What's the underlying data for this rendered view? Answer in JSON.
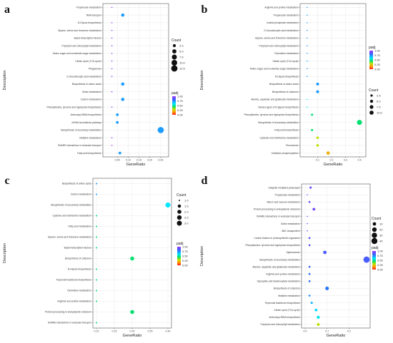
{
  "chart_data": [
    {
      "panel": "a",
      "type": "scatter",
      "xlabel": "GeneRatio",
      "ylabel": "Description",
      "xlim": [
        0.0,
        0.27
      ],
      "xticks": [
        0.05,
        0.1,
        0.15,
        0.2,
        0.25
      ],
      "xtick_labels": [
        "0.05",
        "0.10",
        "0.15",
        "0.20",
        "0.25"
      ],
      "color_scale": "padj",
      "categories": [
        "Propanoate metabolism",
        "RNA transport",
        "N-Glycan biosynthesis",
        "Glycine, serine and threonine metabolism",
        "Basal transcription factors",
        "Porphyrin and chlorophyll metabolism",
        "Amino sugar and nucleotide sugar metabolism",
        "Citrate cycle (TCA cycle)",
        "Phagosome",
        "2-Oxocarboxylic acid metabolism",
        "Biosynthesis of amino acids",
        "Sulfur metabolism",
        "Carbon metabolism",
        "Phenylalanine, tyrosine and tryptophan biosynthesis",
        "Aminoacyl-tRNA biosynthesis",
        "mRNA surveillance pathway",
        "Biosynthesis of secondary metabolites",
        "Histidine metabolism",
        "SNARE interactions in vesicular transport",
        "Fatty acid biosynthesis"
      ],
      "x": [
        0.025,
        0.075,
        0.025,
        0.025,
        0.025,
        0.025,
        0.025,
        0.025,
        0.025,
        0.025,
        0.075,
        0.025,
        0.075,
        0.025,
        0.05,
        0.05,
        0.25,
        0.025,
        0.025,
        0.062
      ],
      "count": [
        1,
        3,
        1,
        1,
        1,
        1,
        1,
        1,
        1,
        1,
        3,
        1,
        3,
        1,
        2,
        2,
        12,
        1,
        1,
        2
      ],
      "padj": [
        1,
        0.72,
        1,
        1,
        1,
        1,
        1,
        1,
        1,
        1,
        0.72,
        1,
        0.72,
        1,
        0.72,
        0.72,
        0.72,
        1,
        1,
        0.72
      ],
      "size_legend": {
        "title": "Count",
        "values": [
          2.5,
          5.0,
          7.5,
          10.0,
          12.5
        ],
        "labels": [
          "2.5",
          "5.0",
          "7.5",
          "10.0",
          "12.5"
        ]
      },
      "color_legend": {
        "title": "padj",
        "ticks": [
          1.0,
          0.75,
          0.5,
          0.25,
          0.0
        ],
        "labels": [
          "1.00",
          "0.75",
          "0.50",
          "0.25",
          "0.00"
        ]
      }
    },
    {
      "panel": "b",
      "type": "scatter",
      "xlabel": "GeneRatio",
      "ylabel": "Description",
      "xlim": [
        0.0,
        0.42
      ],
      "xticks": [
        0.1,
        0.2,
        0.3,
        0.4
      ],
      "xtick_labels": [
        "0.1",
        "0.2",
        "0.3",
        "0.4"
      ],
      "color_scale": "padj",
      "categories": [
        "Arginine and proline metabolism",
        "Propanoate metabolism",
        "Inositol phosphate metabolism",
        "2-Oxocarboxylic acid metabolism",
        "Glycine, serine and threonine metabolism",
        "Porphyrin and chlorophyll metabolism",
        "Pyrimidine metabolism",
        "Citrate cycle (TCA cycle)",
        "Amino sugar and nucleotide sugar metabolism",
        "N-Glycan biosynthesis",
        "Biosynthesis of amino acids",
        "Biosynthesis of cofactors",
        "Alanine, aspartate and glutamate metabolism",
        "Various types of N-glycan biosynthesis",
        "Phenylalanine, tyrosine and tryptophan biosynthesis",
        "Biosynthesis of secondary metabolites",
        "Fatty acid biosynthesis",
        "Cysteine and methionine metabolism",
        "Peroxisome",
        "Oxidative phosphorylation"
      ],
      "x": [
        0.025,
        0.025,
        0.025,
        0.025,
        0.025,
        0.025,
        0.025,
        0.025,
        0.025,
        0.025,
        0.1,
        0.1,
        0.025,
        0.025,
        0.06,
        0.4,
        0.06,
        0.1,
        0.1,
        0.175
      ],
      "count": [
        1,
        1,
        1,
        1,
        1,
        1,
        1,
        1,
        1,
        1,
        4,
        4,
        1,
        1,
        2,
        16,
        2,
        3,
        3,
        6
      ],
      "padj": [
        0.72,
        0.72,
        0.72,
        0.72,
        0.72,
        0.72,
        0.72,
        0.72,
        0.72,
        0.72,
        0.72,
        0.72,
        0.6,
        0.6,
        0.45,
        0.45,
        0.45,
        0.3,
        0.3,
        0.2
      ],
      "size_legend": {
        "title": "Count",
        "values": [
          2.5,
          5.0,
          7.5,
          10.0
        ],
        "labels": [
          "2.5",
          "5.0",
          "7.5",
          "10.0"
        ]
      },
      "color_legend": {
        "title": "padj",
        "ticks": [
          1.0,
          0.75,
          0.5,
          0.25,
          0.0
        ],
        "labels": [
          "1.00",
          "0.75",
          "0.50",
          "0.25",
          "0.00"
        ]
      }
    },
    {
      "panel": "c",
      "type": "scatter",
      "xlabel": "GeneRatio",
      "ylabel": "Description",
      "xlim": [
        0.1,
        0.3
      ],
      "xticks": [
        0.1,
        0.15,
        0.2,
        0.25,
        0.3
      ],
      "xtick_labels": [
        "0.10",
        "0.15",
        "0.20",
        "0.25",
        "0.30"
      ],
      "color_scale": "padj",
      "categories": [
        "Biosynthesis of amino acids",
        "Carbon metabolism",
        "Biosynthesis of secondary metabolites",
        "Cysteine and methionine metabolism",
        "Fatty acid metabolism",
        "Glycine, serine and threonine metabolism",
        "Basal transcription factors",
        "Biosynthesis of cofactors",
        "N-Glycan biosynthesis",
        "Terpenoid backbone biosynthesis",
        "Pyrimidine metabolism",
        "Arginine and proline metabolism",
        "Protein processing in endoplasmic reticulum",
        "SNARE interactions in vesicular transport"
      ],
      "x": [
        0.1,
        0.1,
        0.3,
        0.1,
        0.1,
        0.1,
        0.1,
        0.2,
        0.1,
        0.1,
        0.1,
        0.1,
        0.2,
        0.1
      ],
      "count": [
        1,
        1,
        3,
        1,
        1,
        1,
        1,
        2,
        1,
        1,
        1,
        1,
        2,
        1
      ],
      "padj": [
        0.72,
        0.72,
        0.6,
        0.45,
        0.45,
        0.45,
        0.45,
        0.45,
        0.45,
        0.45,
        0.45,
        0.45,
        0.45,
        0.45
      ],
      "size_legend": {
        "title": "Count",
        "values": [
          1.0,
          1.5,
          2.0,
          2.5,
          3.0
        ],
        "labels": [
          "1.0",
          "1.5",
          "2.0",
          "2.5",
          "3.0"
        ]
      },
      "color_legend": {
        "title": "padj",
        "ticks": [
          1.0,
          0.75,
          0.5,
          0.25,
          0.0
        ],
        "labels": [
          "1.00",
          "0.75",
          "0.50",
          "0.25",
          "0.00"
        ]
      }
    },
    {
      "panel": "d",
      "type": "scatter",
      "xlabel": "GeneRatio",
      "ylabel": "Description",
      "xlim": [
        0.0,
        0.28
      ],
      "xticks": [
        0.0,
        0.1,
        0.2
      ],
      "xtick_labels": [
        "0.0",
        "0.1",
        "0.2"
      ],
      "color_scale": "padj",
      "categories": [
        "Ubiquitin mediated proteolysis",
        "Propanoate metabolism",
        "Starch and sucrose metabolism",
        "Protein processing in endoplasmic reticulum",
        "SNARE interactions in vesicular transport",
        "Sulfur metabolism",
        "ABC transporters",
        "Carbon fixation in photosynthetic organisms",
        "Phenylalanine, tyrosine and tryptophan biosynthesis",
        "Spliceosome",
        "Biosynthesis of secondary metabolites",
        "Alanine, aspartate and glutamate metabolism",
        "Arginine and proline metabolism",
        "Glyoxylate and dicarboxylate metabolism",
        "Biosynthesis of cofactors",
        "Histidine metabolism",
        "Terpenoid backbone biosynthesis",
        "Citrate cycle (TCA cycle)",
        "Aminoacyl-tRNA biosynthesis",
        "Porphyrin and chlorophyll metabolism"
      ],
      "x": [
        0.025,
        0.01,
        0.02,
        0.04,
        0.01,
        0.01,
        0.01,
        0.02,
        0.02,
        0.09,
        0.28,
        0.02,
        0.02,
        0.02,
        0.1,
        0.02,
        0.03,
        0.05,
        0.06,
        0.06
      ],
      "count": [
        3,
        1,
        2,
        5,
        1,
        1,
        1,
        2,
        2,
        10,
        45,
        2,
        2,
        2,
        11,
        2,
        3,
        5,
        7,
        6
      ],
      "padj": [
        0.92,
        0.92,
        0.92,
        0.92,
        0.92,
        0.92,
        0.92,
        0.88,
        0.88,
        0.85,
        0.85,
        0.82,
        0.8,
        0.8,
        0.78,
        0.75,
        0.68,
        0.62,
        0.58,
        0.3
      ],
      "size_legend": {
        "title": "Count",
        "values": [
          10,
          20,
          30,
          40
        ],
        "labels": [
          "10",
          "20",
          "30",
          "40"
        ]
      },
      "color_legend": {
        "title": "padj",
        "ticks": [
          1.0,
          0.75,
          0.5,
          0.25,
          0.0
        ],
        "labels": [
          "1.00",
          "0.75",
          "0.50",
          "0.25",
          "0.00"
        ]
      }
    }
  ]
}
